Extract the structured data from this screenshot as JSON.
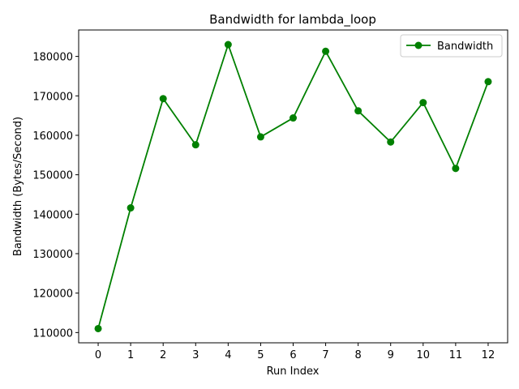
{
  "chart_data": {
    "type": "line",
    "title": "Bandwidth for lambda_loop",
    "xlabel": "Run Index",
    "ylabel": "Bandwidth (Bytes/Second)",
    "x": [
      0,
      1,
      2,
      3,
      4,
      5,
      6,
      7,
      8,
      9,
      10,
      11,
      12
    ],
    "xticks": [
      "0",
      "1",
      "2",
      "3",
      "4",
      "5",
      "6",
      "7",
      "8",
      "9",
      "10",
      "11",
      "12"
    ],
    "yticks": [
      110000,
      120000,
      130000,
      140000,
      150000,
      160000,
      170000,
      180000
    ],
    "ytick_labels": [
      "110000",
      "120000",
      "130000",
      "140000",
      "150000",
      "160000",
      "170000",
      "180000"
    ],
    "xlim": [
      -0.6,
      12.6
    ],
    "ylim": [
      107400,
      186700
    ],
    "series": [
      {
        "name": "Bandwidth",
        "color": "#008000",
        "marker": "circle",
        "values": [
          111000,
          141600,
          169300,
          157600,
          183000,
          159600,
          164400,
          181300,
          166200,
          158300,
          168300,
          151600,
          173600
        ]
      }
    ],
    "legend": {
      "placement": "top-right",
      "entries": [
        "Bandwidth"
      ]
    },
    "grid": false
  }
}
